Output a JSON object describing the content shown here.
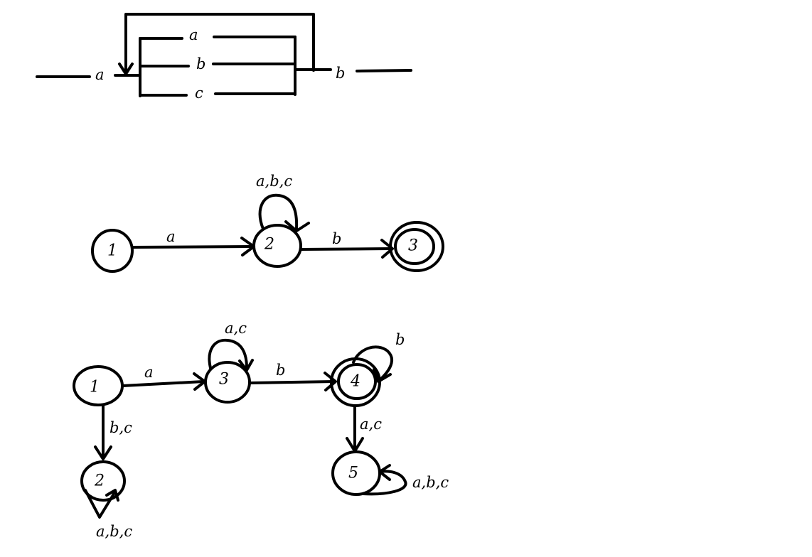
{
  "syntax_diagram": {
    "entry_label": "a",
    "branch_labels": [
      "a",
      "b",
      "c"
    ],
    "exit_label": "b"
  },
  "nfa": {
    "states": [
      "1",
      "2",
      "3"
    ],
    "edge_1_2": "a",
    "loop_2": "a,b,c",
    "edge_2_3": "b"
  },
  "dfa": {
    "states": [
      "1",
      "2",
      "3",
      "4",
      "5"
    ],
    "edge_1_3": "a",
    "edge_1_2": "b,c",
    "loop_2": "a,b,c",
    "loop_3": "a,c",
    "edge_3_4": "b",
    "loop_4": "b",
    "edge_4_5": "a,c",
    "loop_5": "a,b,c"
  }
}
